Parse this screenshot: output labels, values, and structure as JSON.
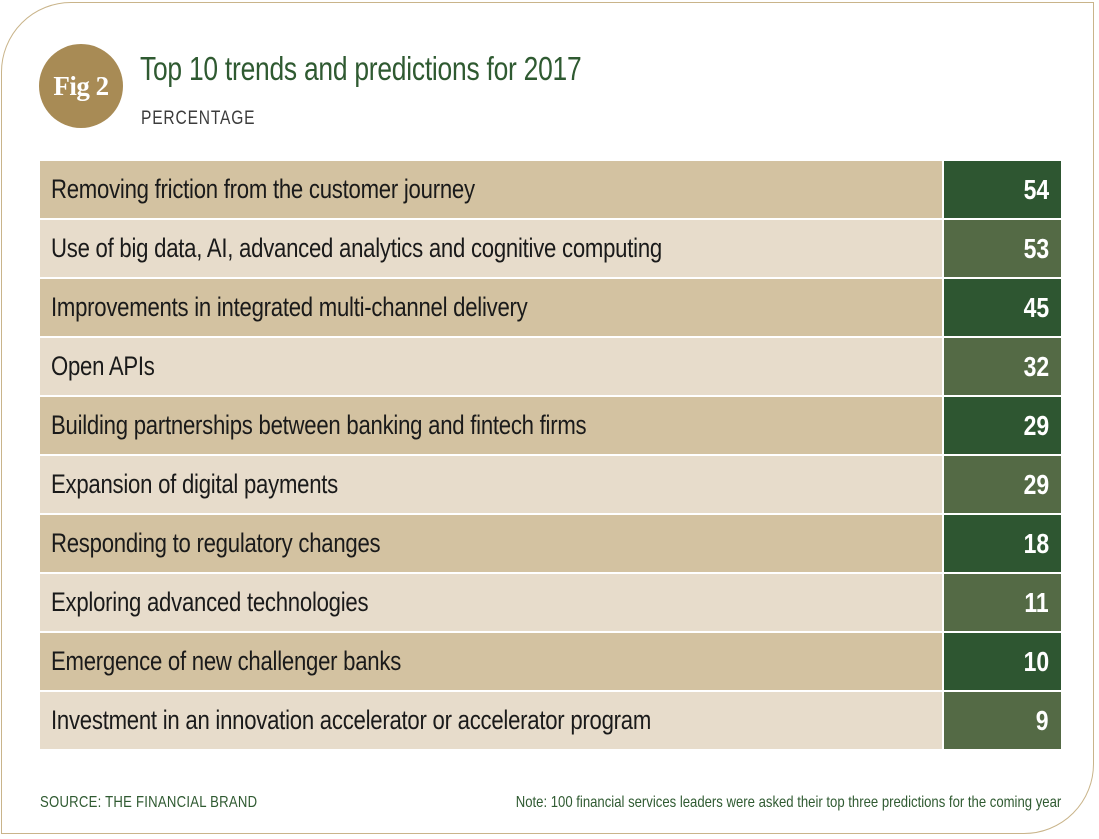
{
  "badge": "Fig 2",
  "colors": {
    "accent_gold": "#a88b55",
    "title_green": "#2f5a31",
    "label_dark": "#d3c2a1",
    "label_light": "#e7dccb",
    "value_dark": "#2e5631",
    "value_light": "#546a45"
  },
  "chart_data": {
    "type": "table",
    "title": "Top 10 trends and predictions for 2017",
    "subtitle": "PERCENTAGE",
    "rows": [
      {
        "label": "Removing friction from the customer journey",
        "value": 54
      },
      {
        "label": "Use of big data, AI, advanced analytics and cognitive computing",
        "value": 53
      },
      {
        "label": "Improvements in integrated multi-channel delivery",
        "value": 45
      },
      {
        "label": "Open APIs",
        "value": 32
      },
      {
        "label": "Building partnerships between banking and fintech firms",
        "value": 29
      },
      {
        "label": "Expansion of digital payments",
        "value": 29
      },
      {
        "label": "Responding to regulatory changes",
        "value": 18
      },
      {
        "label": "Exploring advanced technologies",
        "value": 11
      },
      {
        "label": "Emergence of new challenger banks",
        "value": 10
      },
      {
        "label": "Investment in an innovation accelerator or accelerator program",
        "value": 9
      }
    ]
  },
  "footer": {
    "source": "SOURCE: THE FINANCIAL BRAND",
    "note": "Note: 100 financial services leaders were asked their top three predictions for the coming year"
  }
}
